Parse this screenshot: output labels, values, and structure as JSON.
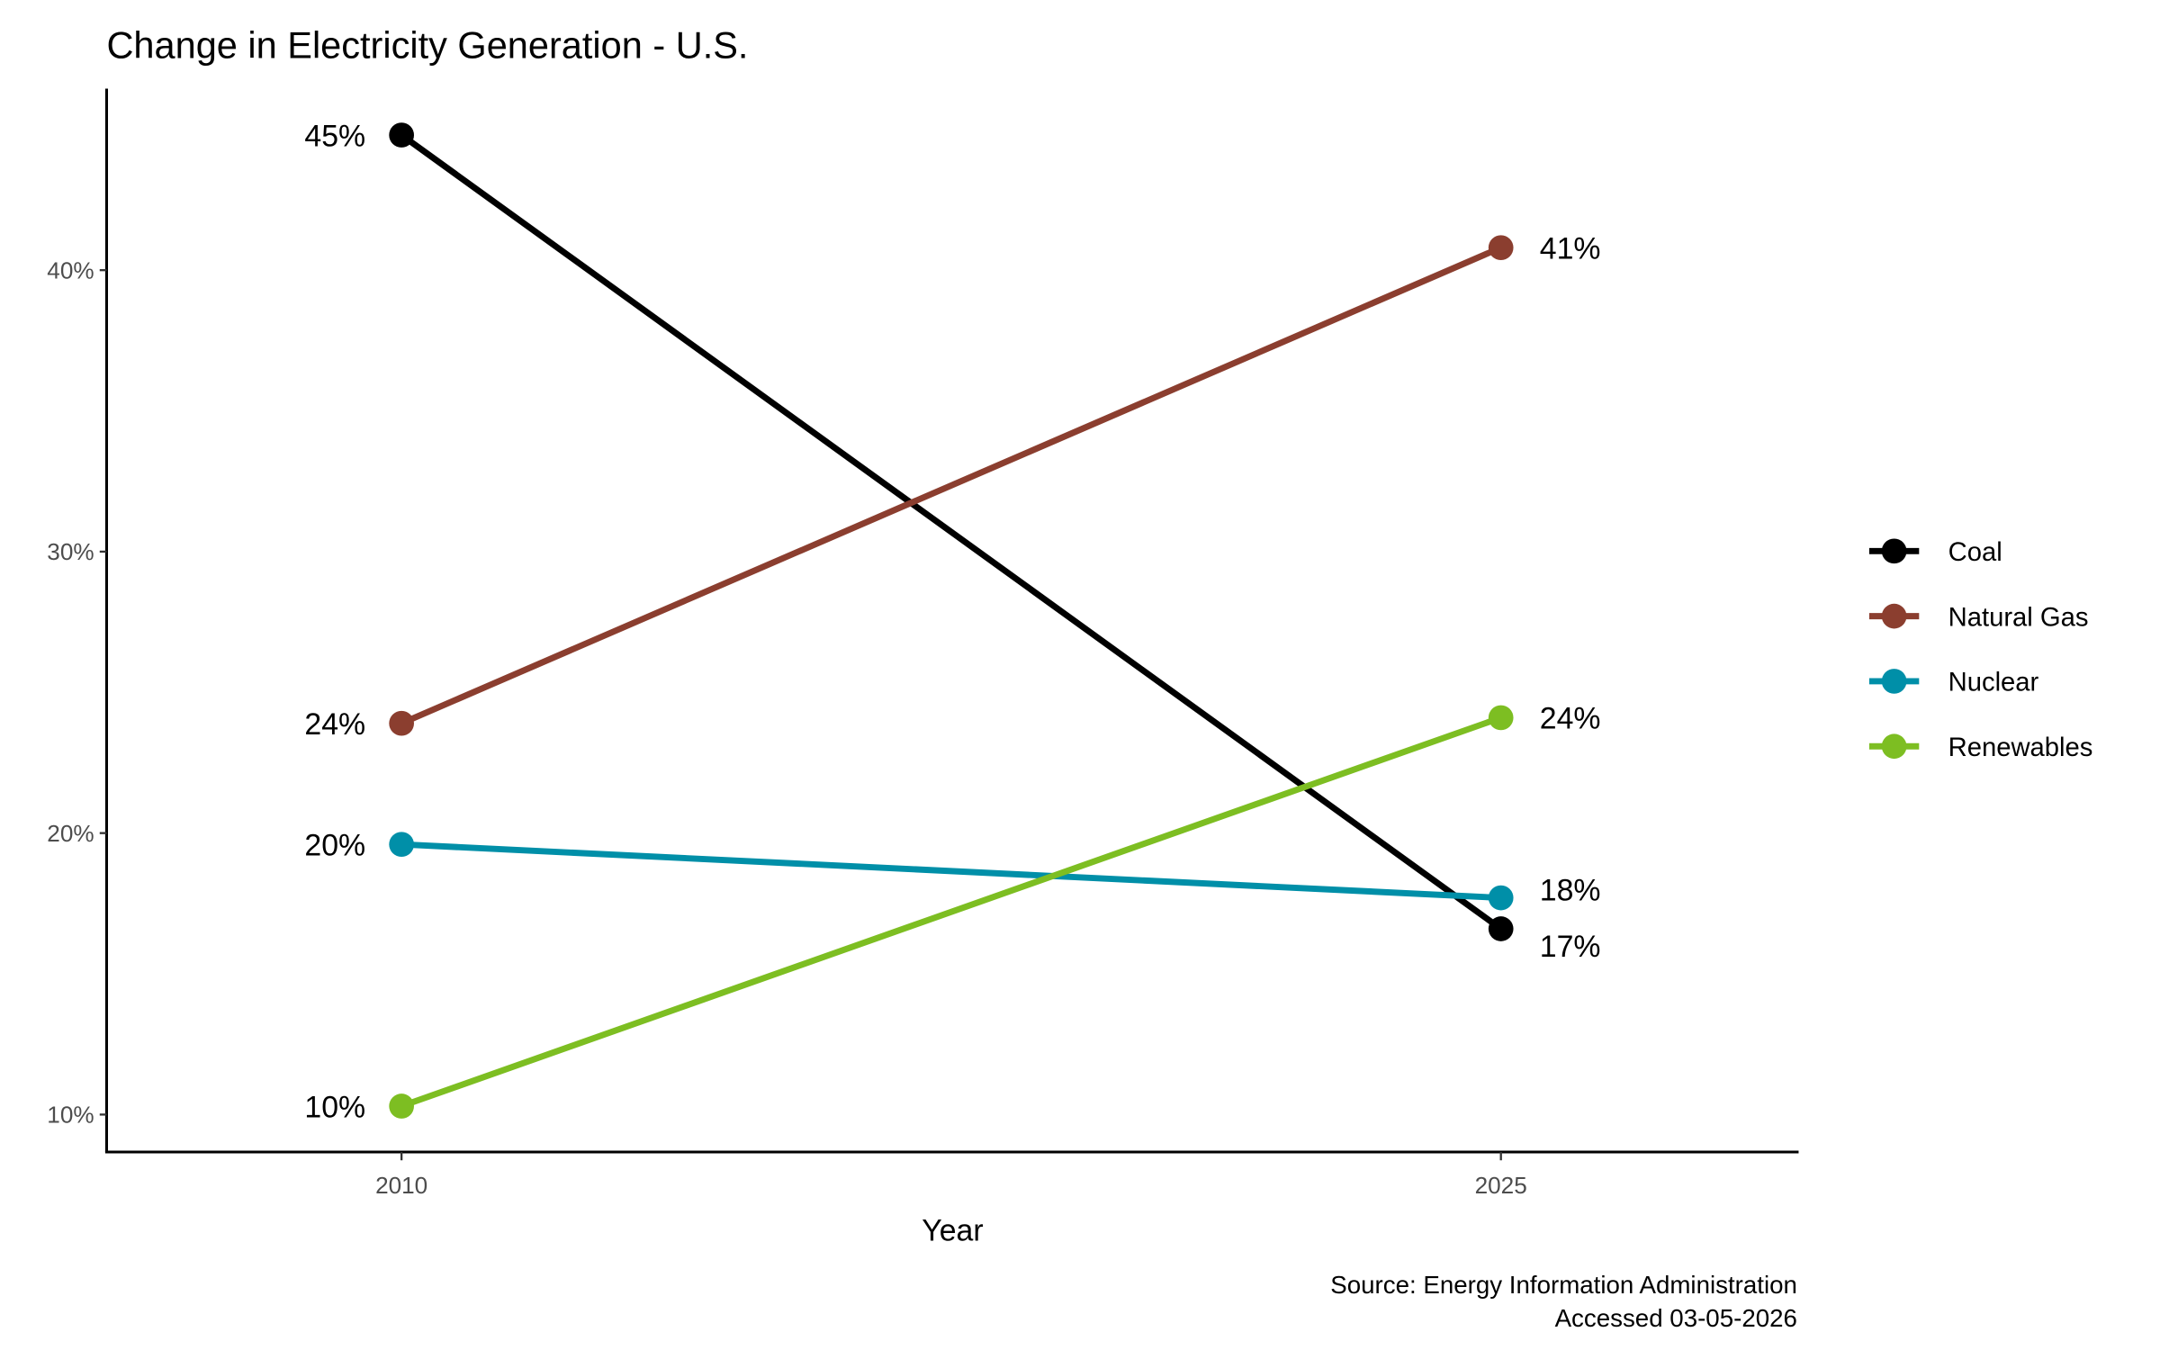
{
  "chart_data": {
    "type": "line",
    "title": "Change in Electricity Generation - U.S.",
    "xlabel": "Year",
    "ylabel": "",
    "categories": [
      "2010",
      "2025"
    ],
    "x_tick_labels": [
      "2010",
      "2025"
    ],
    "y_ticks": [
      10,
      20,
      30,
      40
    ],
    "y_tick_labels": [
      "10%",
      "20%",
      "30%",
      "40%"
    ],
    "ylim": [
      8.67,
      46.45
    ],
    "grid": false,
    "legend_position": "right",
    "series": [
      {
        "name": "Coal",
        "color": "#000000",
        "values": [
          44.8,
          16.6
        ],
        "labels": [
          "45%",
          "17%"
        ]
      },
      {
        "name": "Natural Gas",
        "color": "#8B3E2F",
        "values": [
          23.9,
          40.8
        ],
        "labels": [
          "24%",
          "41%"
        ]
      },
      {
        "name": "Nuclear",
        "color": "#008FA8",
        "values": [
          19.6,
          17.7
        ],
        "labels": [
          "20%",
          "18%"
        ]
      },
      {
        "name": "Renewables",
        "color": "#7DBE22",
        "values": [
          10.3,
          24.1
        ],
        "labels": [
          "10%",
          "24%"
        ]
      }
    ],
    "caption": [
      "Source: Energy Information Administration",
      "Accessed 03-05-2026"
    ]
  }
}
